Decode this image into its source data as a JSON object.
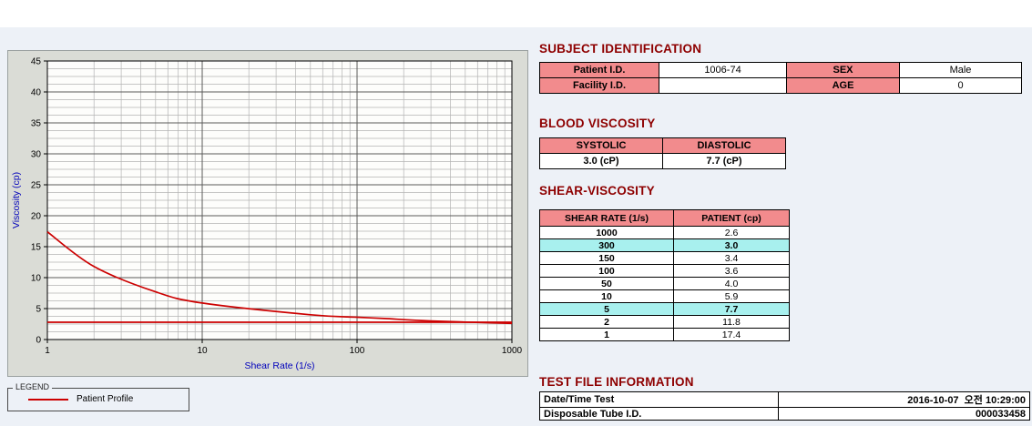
{
  "legend": {
    "box_label": "LEGEND",
    "entries": [
      {
        "label": "Patient Profile",
        "color": "#cc0000"
      }
    ]
  },
  "subject": {
    "heading": "SUBJECT IDENTIFICATION",
    "rows": [
      {
        "label1": "Patient I.D.",
        "value1": "1006-74",
        "label2": "SEX",
        "value2": "Male"
      },
      {
        "label1": "Facility I.D.",
        "value1": "",
        "label2": "AGE",
        "value2": "0"
      }
    ]
  },
  "blood_viscosity": {
    "heading": "BLOOD VISCOSITY",
    "headers": [
      "SYSTOLIC",
      "DIASTOLIC"
    ],
    "values": [
      "3.0 (cP)",
      "7.7 (cP)"
    ]
  },
  "shear_viscosity": {
    "heading": "SHEAR-VISCOSITY",
    "headers": [
      "SHEAR RATE (1/s)",
      "PATIENT (cp)"
    ],
    "rows": [
      {
        "rate": "1000",
        "value": "2.6",
        "highlight": false
      },
      {
        "rate": "300",
        "value": "3.0",
        "highlight": true
      },
      {
        "rate": "150",
        "value": "3.4",
        "highlight": false
      },
      {
        "rate": "100",
        "value": "3.6",
        "highlight": false
      },
      {
        "rate": "50",
        "value": "4.0",
        "highlight": false
      },
      {
        "rate": "10",
        "value": "5.9",
        "highlight": false
      },
      {
        "rate": "5",
        "value": "7.7",
        "highlight": true
      },
      {
        "rate": "2",
        "value": "11.8",
        "highlight": false
      },
      {
        "rate": "1",
        "value": "17.4",
        "highlight": false
      }
    ]
  },
  "test_file": {
    "heading": "TEST FILE INFORMATION",
    "rows": [
      {
        "label": "Date/Time Test",
        "value": "2016-10-07  오전 10:29:00"
      },
      {
        "label": "Disposable Tube I.D.",
        "value": "000033458"
      }
    ]
  },
  "chart_data": {
    "type": "line",
    "x_scale": "log",
    "x": [
      1,
      2,
      5,
      10,
      50,
      100,
      150,
      300,
      1000
    ],
    "series": [
      {
        "name": "Patient Profile",
        "color": "#cc0000",
        "values": [
          17.4,
          11.8,
          7.7,
          5.9,
          4.0,
          3.6,
          3.4,
          3.0,
          2.6
        ]
      }
    ],
    "reference_line": {
      "y": 2.8,
      "color": "#cc0000"
    },
    "title": "",
    "xlabel": "Shear Rate (1/s)",
    "ylabel": "Viscosity (cp)",
    "xlim": [
      1,
      1000
    ],
    "ylim": [
      0,
      45
    ],
    "x_major_ticks": [
      1,
      10,
      100,
      1000
    ],
    "y_tick_step": 5,
    "y_minor_step": 1.25,
    "grid": true,
    "legend_position": "bottom-left",
    "axis_label_color": "#0000bb"
  },
  "colors": {
    "page_bg": "#edf1f7",
    "header_pink": "#f28b8d",
    "highlight_cyan": "#a8f0ee",
    "heading_red": "#8e0000",
    "line_red": "#cc0000"
  }
}
